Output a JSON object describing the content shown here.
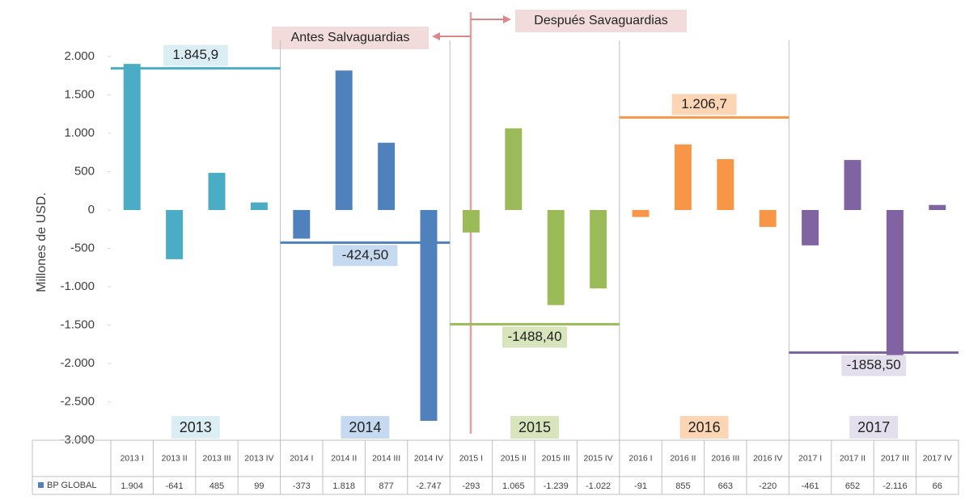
{
  "chart_data": {
    "type": "bar",
    "y_label": "Millones de USD.",
    "categories": [
      "2013 I",
      "2013 II",
      "2013 III",
      "2013 IV",
      "2014 I",
      "2014 II",
      "2014 III",
      "2014 IV",
      "2015 I",
      "2015 II",
      "2015 III",
      "2015 IV",
      "2016 I",
      "2016 II",
      "2016 III",
      "2016 IV",
      "2017 I",
      "2017 II",
      "2017 III",
      "2017 IV"
    ],
    "series": [
      {
        "name": "BP GLOBAL",
        "color": "#4f81bd",
        "values": [
          1904,
          -641,
          485,
          99,
          -373,
          1818,
          877,
          -2747,
          -293,
          1065,
          -1239,
          -1022,
          -91,
          855,
          663,
          -220,
          -461,
          652,
          -2116,
          66
        ],
        "value_labels": [
          "1.904",
          "-641",
          "485",
          "99",
          "-373",
          "1.818",
          "877",
          "-2.747",
          "-293",
          "1.065",
          "-1.239",
          "-1.022",
          "-91",
          "855",
          "663",
          "-220",
          "-461",
          "652",
          "-2.116",
          "66"
        ]
      }
    ],
    "groups": [
      {
        "label": "2013",
        "color": "#4bacc6",
        "light_color": "#daeef3",
        "average": 1845.9,
        "average_label": "1.845,9"
      },
      {
        "label": "2014",
        "color": "#4f81bd",
        "light_color": "#c5d9f1",
        "average": -424.5,
        "average_label": "-424,50"
      },
      {
        "label": "2015",
        "color": "#9bbb59",
        "light_color": "#d8e4bc",
        "average": -1488.4,
        "average_label": "-1488,40"
      },
      {
        "label": "2016",
        "color": "#f79646",
        "light_color": "#fcd5b4",
        "average": 1206.7,
        "average_label": "1.206,7"
      },
      {
        "label": "2017",
        "color": "#8064a2",
        "light_color": "#e4dfec",
        "average": -1858.5,
        "average_label": "-1858,50"
      }
    ],
    "annotations": [
      "Antes Salvaguardias",
      "Después Savaguardias"
    ],
    "ylim": [
      -3000,
      2000
    ],
    "yticks": [
      {
        "value": 2000,
        "label": "2.000"
      },
      {
        "value": 1500,
        "label": "1.500"
      },
      {
        "value": 1000,
        "label": "1.000"
      },
      {
        "value": 500,
        "label": "500"
      },
      0,
      {
        "value": -500,
        "label": "-500"
      },
      {
        "value": -1000,
        "label": "-1.000"
      },
      {
        "value": -1500,
        "label": "-1.500"
      },
      {
        "value": -2000,
        "label": "-2.000"
      },
      {
        "value": -2500,
        "label": "-2.500"
      },
      {
        "value": -3000,
        "label": "-3.000"
      }
    ],
    "grid": false
  }
}
